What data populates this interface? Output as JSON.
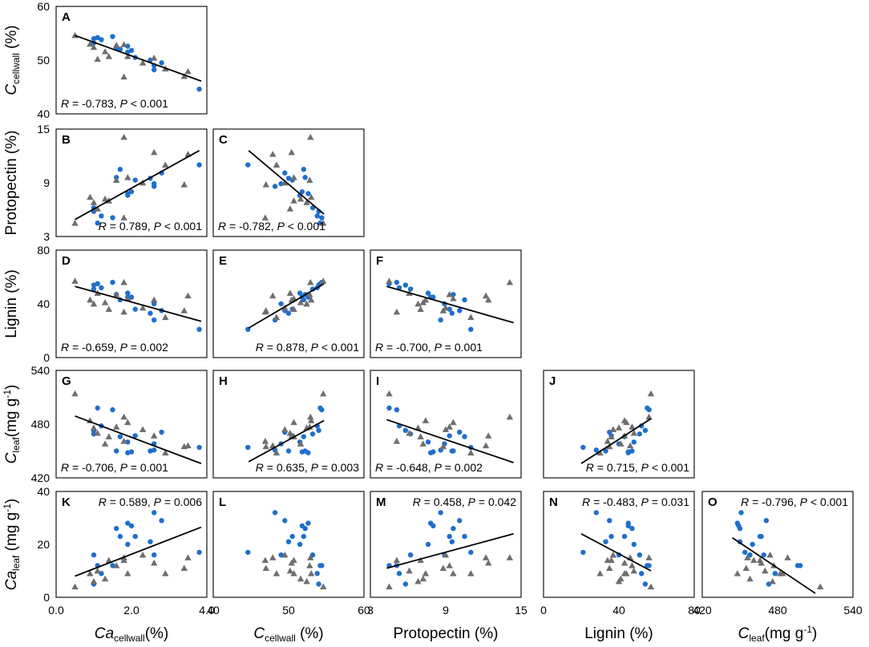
{
  "chart_data": {
    "type": "scatter",
    "figure": "scatterplot matrix of leaf traits",
    "variables": [
      {
        "key": "ca_cw",
        "label_main": "Ca",
        "label_sub": "cellwall",
        "label_after": "(%)",
        "italic_main": true,
        "range": [
          0,
          4
        ],
        "ticks": [
          "0.0",
          "2.0",
          "4.0"
        ]
      },
      {
        "key": "c_cw",
        "label_main": "C",
        "label_sub": "cellwall",
        "label_after": " (%)",
        "italic_main": true,
        "range": [
          40,
          60
        ],
        "ticks": [
          "40",
          "50",
          "60"
        ]
      },
      {
        "key": "pp",
        "label_main": "Protopectin (%)",
        "label_sub": "",
        "label_after": "",
        "italic_main": false,
        "range": [
          3,
          15
        ],
        "ticks": [
          "3",
          "9",
          "15"
        ]
      },
      {
        "key": "lig",
        "label_main": "Lignin (%)",
        "label_sub": "",
        "label_after": "",
        "italic_main": false,
        "range": [
          0,
          80
        ],
        "ticks": [
          "0",
          "40",
          "80"
        ]
      },
      {
        "key": "c_leaf",
        "label_main": "C",
        "label_sub": "leaf",
        "label_after": "(mg g",
        "sup": "-1",
        "label_close": ")",
        "italic_main": true,
        "range": [
          420,
          540
        ],
        "ticks": [
          "420",
          "480",
          "540"
        ]
      },
      {
        "key": "ca_leaf",
        "label_main": "Ca",
        "label_sub": "leaf",
        "label_after": " (mg g",
        "sup": "-1",
        "label_close": ")",
        "italic_main": true,
        "range": [
          0,
          40
        ],
        "ticks": [
          "0",
          "20",
          "40"
        ]
      }
    ],
    "series": [
      {
        "name": "blue circles",
        "color": "#1f6fcc",
        "marker": "circle",
        "ca_cw": [
          1.0,
          1.1,
          1.5,
          1.7,
          1.9,
          2.0,
          2.1,
          2.5,
          2.6,
          2.8,
          3.8,
          1.0,
          1.2,
          1.9,
          2.6,
          1.6
        ],
        "c_cw": [
          54.0,
          54.2,
          54.4,
          52.0,
          52.6,
          51.8,
          50.5,
          50.0,
          48.2,
          49.5,
          44.6,
          53.2,
          53.8,
          51.5,
          49.0,
          52.2
        ],
        "pp": [
          5.8,
          4.5,
          5.1,
          10.5,
          7.8,
          8.0,
          9.3,
          9.5,
          8.6,
          10.1,
          11.0,
          6.2,
          5.3,
          7.6,
          8.9,
          9.6
        ],
        "lig": [
          54,
          55,
          56,
          43,
          45,
          45,
          36,
          33,
          28,
          35,
          21,
          51,
          52,
          48,
          40,
          47
        ],
        "c_leaf": [
          473,
          498,
          496,
          466,
          448,
          449,
          467,
          450,
          451,
          471,
          454,
          469,
          478,
          460,
          458,
          450
        ],
        "ca_leaf": [
          5,
          12,
          12,
          23,
          28,
          27,
          23,
          21,
          32,
          29,
          17,
          16,
          9,
          20,
          16,
          26
        ]
      },
      {
        "name": "gray triangles",
        "color": "#6e6e6e",
        "marker": "triangle",
        "ca_cw": [
          0.5,
          0.9,
          1.0,
          1.1,
          1.4,
          1.6,
          1.8,
          1.8,
          1.9,
          2.3,
          2.6,
          3.5,
          3.4,
          1.3,
          2.9
        ],
        "c_cw": [
          54.6,
          53.0,
          52.4,
          50.2,
          50.7,
          52.8,
          46.9,
          52.9,
          50.7,
          49.5,
          50.4,
          47.9,
          47.0,
          51.6,
          48.4
        ],
        "pp": [
          4.5,
          7.4,
          6.8,
          6.1,
          7.0,
          9.3,
          5.1,
          14.1,
          9.6,
          9.0,
          12.4,
          12.2,
          8.8,
          7.2,
          11.0
        ],
        "lig": [
          57,
          43,
          40,
          48,
          36,
          47,
          34,
          56,
          44,
          37,
          43,
          46,
          35,
          41,
          30
        ],
        "c_leaf": [
          514,
          484,
          476,
          470,
          466,
          477,
          461,
          488,
          482,
          474,
          467,
          456,
          455,
          458,
          448
        ],
        "ca_leaf": [
          4,
          9,
          6,
          10,
          14,
          12,
          14,
          15,
          9,
          16,
          13,
          15,
          11,
          7,
          9
        ]
      }
    ],
    "panels": [
      {
        "letter": "A",
        "row": 0,
        "col": 0,
        "x": "ca_cw",
        "y": "c_cw",
        "stat_r": "-0.783",
        "p_op": "<",
        "stat_p": "0.001",
        "stat_pos": "bottom-left",
        "fit": [
          [
            0.5,
            54.6
          ],
          [
            3.85,
            46.1
          ]
        ]
      },
      {
        "letter": "B",
        "row": 1,
        "col": 0,
        "x": "ca_cw",
        "y": "pp",
        "stat_r": "0.789",
        "p_op": "<",
        "stat_p": "0.001",
        "stat_pos": "bottom-right",
        "fit": [
          [
            0.5,
            4.9
          ],
          [
            3.8,
            12.6
          ]
        ]
      },
      {
        "letter": "C",
        "row": 1,
        "col": 1,
        "x": "c_cw",
        "y": "pp",
        "stat_r": "-0.782",
        "p_op": "",
        "stat_p": "< 0.001",
        "stat_pos": "bottom-left",
        "fit": [
          [
            44.7,
            12.6
          ],
          [
            54.7,
            5.5
          ]
        ]
      },
      {
        "letter": "D",
        "row": 2,
        "col": 0,
        "x": "ca_cw",
        "y": "lig",
        "stat_r": "-0.659",
        "p_op": "=",
        "stat_p": "0.002",
        "stat_pos": "bottom-left",
        "fit": [
          [
            0.5,
            53
          ],
          [
            3.85,
            27
          ]
        ]
      },
      {
        "letter": "E",
        "row": 2,
        "col": 1,
        "x": "c_cw",
        "y": "lig",
        "stat_r": "0.878",
        "p_op": "<",
        "stat_p": "0.001",
        "stat_pos": "bottom-right",
        "fit": [
          [
            44.7,
            22
          ],
          [
            54.7,
            55
          ]
        ]
      },
      {
        "letter": "F",
        "row": 2,
        "col": 2,
        "x": "pp",
        "y": "lig",
        "stat_r": "-0.700",
        "p_op": "=",
        "stat_p": "0.001",
        "stat_pos": "bottom-left",
        "fit": [
          [
            4.3,
            53
          ],
          [
            14.4,
            26
          ]
        ]
      },
      {
        "letter": "G",
        "row": 3,
        "col": 0,
        "x": "ca_cw",
        "y": "c_leaf",
        "stat_r": "-0.706",
        "p_op": "=",
        "stat_p": "0.001",
        "stat_pos": "bottom-left",
        "fit": [
          [
            0.5,
            489
          ],
          [
            3.85,
            436
          ]
        ]
      },
      {
        "letter": "H",
        "row": 3,
        "col": 1,
        "x": "c_cw",
        "y": "c_leaf",
        "stat_r": "0.635",
        "p_op": "=",
        "stat_p": "0.003",
        "stat_pos": "bottom-right",
        "fit": [
          [
            44.7,
            438
          ],
          [
            54.7,
            484
          ]
        ]
      },
      {
        "letter": "I",
        "row": 3,
        "col": 2,
        "x": "pp",
        "y": "c_leaf",
        "stat_r": "-0.648",
        "p_op": "=",
        "stat_p": "0.002",
        "stat_pos": "bottom-left",
        "fit": [
          [
            4.3,
            485
          ],
          [
            14.4,
            437
          ]
        ]
      },
      {
        "letter": "J",
        "row": 3,
        "col": 3,
        "x": "lig",
        "y": "c_leaf",
        "stat_r": "0.715",
        "p_op": "<",
        "stat_p": "0.001",
        "stat_pos": "bottom-right",
        "fit": [
          [
            20,
            436
          ],
          [
            57,
            486
          ]
        ]
      },
      {
        "letter": "K",
        "row": 4,
        "col": 0,
        "x": "ca_cw",
        "y": "ca_leaf",
        "stat_r": "0.589",
        "p_op": "=",
        "stat_p": "0.006",
        "stat_pos": "top-right",
        "fit": [
          [
            0.5,
            8
          ],
          [
            3.85,
            26.5
          ]
        ]
      },
      {
        "letter": "L",
        "row": 4,
        "col": 1,
        "x": "c_cw",
        "y": "ca_leaf",
        "stat_r": "",
        "p_op": "",
        "stat_p": "",
        "stat_pos": "none",
        "fit": null
      },
      {
        "letter": "M",
        "row": 4,
        "col": 2,
        "x": "pp",
        "y": "ca_leaf",
        "stat_r": "0.458",
        "p_op": "=",
        "stat_p": "0.042",
        "stat_pos": "top-right",
        "fit": [
          [
            4.3,
            11
          ],
          [
            14.4,
            24
          ]
        ]
      },
      {
        "letter": "N",
        "row": 4,
        "col": 3,
        "x": "lig",
        "y": "ca_leaf",
        "stat_r": "-0.483",
        "p_op": "=",
        "stat_p": "0.031",
        "stat_pos": "top-right",
        "fit": [
          [
            20,
            24
          ],
          [
            57,
            10
          ]
        ]
      },
      {
        "letter": "O",
        "row": 4,
        "col": 4,
        "x": "c_leaf",
        "y": "ca_leaf",
        "stat_r": "-0.796",
        "p_op": "<",
        "stat_p": "0.001",
        "stat_pos": "top-right",
        "fit": [
          [
            444,
            22.5
          ],
          [
            510,
            1.5
          ]
        ]
      }
    ]
  }
}
